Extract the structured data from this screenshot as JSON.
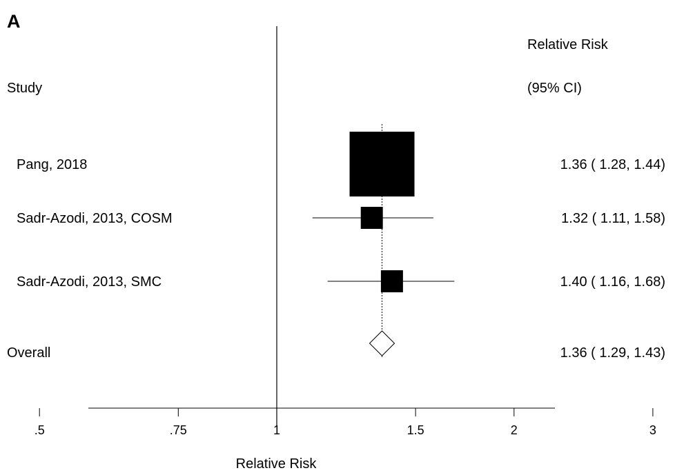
{
  "chart_data": {
    "type": "forest",
    "panel_label": "A",
    "xlabel": "Relative Risk",
    "header_study": "Study",
    "header_rr": "Relative Risk",
    "header_ci": "(95% CI)",
    "x_scale": "log",
    "x_ticks": [
      {
        "value": 0.5,
        "label": ".5"
      },
      {
        "value": 0.75,
        "label": ".75"
      },
      {
        "value": 1,
        "label": "1"
      },
      {
        "value": 1.5,
        "label": "1.5"
      },
      {
        "value": 2,
        "label": "2"
      },
      {
        "value": 3,
        "label": "3"
      }
    ],
    "xlim": [
      0.4,
      3.8
    ],
    "null_value": 1,
    "grid": false,
    "studies": [
      {
        "name": "Pang, 2018",
        "rr": 1.36,
        "lower": 1.28,
        "upper": 1.44,
        "label": "1.36 ( 1.28, 1.44)",
        "weight": 1.0
      },
      {
        "name": "Sadr-Azodi, 2013, COSM",
        "rr": 1.32,
        "lower": 1.11,
        "upper": 1.58,
        "label": "1.32 ( 1.11, 1.58)",
        "weight": 0.34
      },
      {
        "name": "Sadr-Azodi, 2013, SMC",
        "rr": 1.4,
        "lower": 1.16,
        "upper": 1.68,
        "label": "1.40 ( 1.16, 1.68)",
        "weight": 0.34
      }
    ],
    "overall": {
      "name": "Overall",
      "rr": 1.36,
      "lower": 1.29,
      "upper": 1.43,
      "label": "1.36 ( 1.29, 1.43)"
    }
  }
}
